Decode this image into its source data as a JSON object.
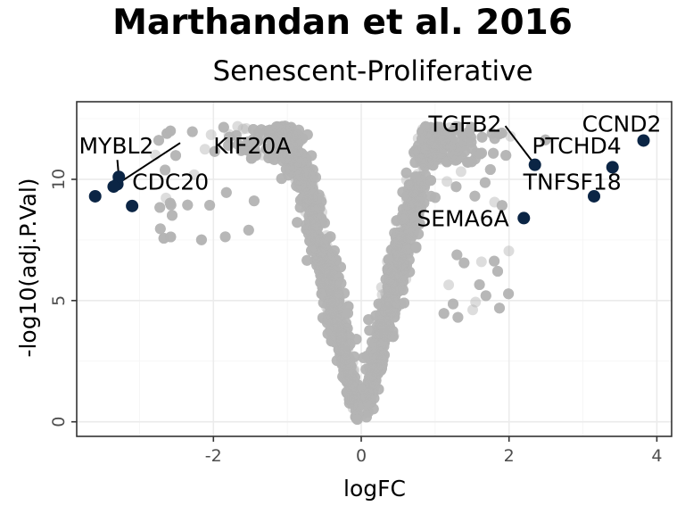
{
  "colors": {
    "background_points": "#b3b3b3",
    "highlight_points": "#0b2545",
    "panel_border": "#333333",
    "panel_background": "#ffffff",
    "grid": "#ebebeb"
  },
  "chart_data": {
    "type": "scatter",
    "title": "Marthandan et al. 2016",
    "subtitle": "Senescent-Proliferative",
    "xlabel": "logFC",
    "ylabel": "-log10(adj.P.Val)",
    "xlim": [
      -3.85,
      4.2
    ],
    "ylim": [
      -0.6,
      13.2
    ],
    "x_ticks": [
      -2,
      0,
      2,
      4
    ],
    "x_tick_labels": [
      "-2",
      "0",
      "2",
      "4"
    ],
    "y_ticks": [
      0,
      5,
      10
    ],
    "y_tick_labels": [
      "0",
      "5",
      "10"
    ],
    "grid": true,
    "legend": "none",
    "background_series": {
      "description_shape": "volcano",
      "approx_point_count": 6000
    },
    "highlighted": [
      {
        "label": "MYBL2",
        "x": -3.3,
        "y": 9.8
      },
      {
        "label": "KIF20A",
        "x": -3.28,
        "y": 10.1
      },
      {
        "label": "CDC20",
        "x": -3.35,
        "y": 9.7
      },
      {
        "label": "",
        "x": -3.6,
        "y": 9.3
      },
      {
        "label": "",
        "x": -3.1,
        "y": 8.9
      },
      {
        "label": "TGFB2",
        "x": 2.35,
        "y": 10.6
      },
      {
        "label": "PTCHD4",
        "x": 3.4,
        "y": 10.5
      },
      {
        "label": "CCND2",
        "x": 3.82,
        "y": 11.6
      },
      {
        "label": "TNFSF18",
        "x": 3.15,
        "y": 9.3
      },
      {
        "label": "SEMA6A",
        "x": 2.2,
        "y": 8.4
      }
    ],
    "annotations": [
      {
        "text": "MYBL2",
        "data_x": -3.82,
        "data_y": 11.4,
        "anchor": "start"
      },
      {
        "text": "KIF20A",
        "data_x": -2.0,
        "data_y": 11.4,
        "anchor": "start"
      },
      {
        "text": "CDC20",
        "data_x": -3.1,
        "data_y": 9.9,
        "anchor": "start"
      },
      {
        "text": "TGFB2",
        "data_x": 1.9,
        "data_y": 12.3,
        "anchor": "end"
      },
      {
        "text": "CCND2",
        "data_x": 4.06,
        "data_y": 12.3,
        "anchor": "end"
      },
      {
        "text": "PTCHD4",
        "data_x": 3.52,
        "data_y": 11.4,
        "anchor": "end"
      },
      {
        "text": "TNFSF18",
        "data_x": 3.52,
        "data_y": 9.9,
        "anchor": "end"
      },
      {
        "text": "SEMA6A",
        "data_x": 2.0,
        "data_y": 8.4,
        "anchor": "end"
      }
    ],
    "leader_lines": [
      {
        "from": [
          -3.3,
          10.8
        ],
        "to": [
          -3.28,
          10.1
        ]
      },
      {
        "from": [
          -2.45,
          11.5
        ],
        "to": [
          -3.28,
          9.85
        ]
      },
      {
        "from": [
          1.95,
          12.2
        ],
        "to": [
          2.35,
          10.6
        ]
      }
    ]
  }
}
